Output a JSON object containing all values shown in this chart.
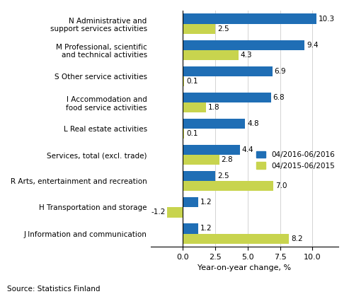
{
  "categories": [
    "N Administrative and\nsupport services activities",
    "M Professional, scientific\nand technical activities",
    "S Other service activities",
    "I Accommodation and\nfood service activities",
    "L Real estate activities",
    "Services, total (excl. trade)",
    "R Arts, entertainment and recreation",
    "H Transportation and storage",
    "J Information and communication"
  ],
  "values_2016": [
    10.3,
    9.4,
    6.9,
    6.8,
    4.8,
    4.4,
    2.5,
    1.2,
    1.2
  ],
  "values_2015": [
    2.5,
    4.3,
    0.1,
    1.8,
    0.1,
    2.8,
    7.0,
    -1.2,
    8.2
  ],
  "color_2016": "#1f6eb5",
  "color_2015": "#c8d44e",
  "legend_2016": "04/2016-06/2016",
  "legend_2015": "04/2015-06/2015",
  "xlabel": "Year-on-year change, %",
  "source": "Source: Statistics Finland",
  "xlim": [
    -2.5,
    12.0
  ],
  "xticks": [
    0.0,
    2.5,
    5.0,
    7.5,
    10.0
  ]
}
